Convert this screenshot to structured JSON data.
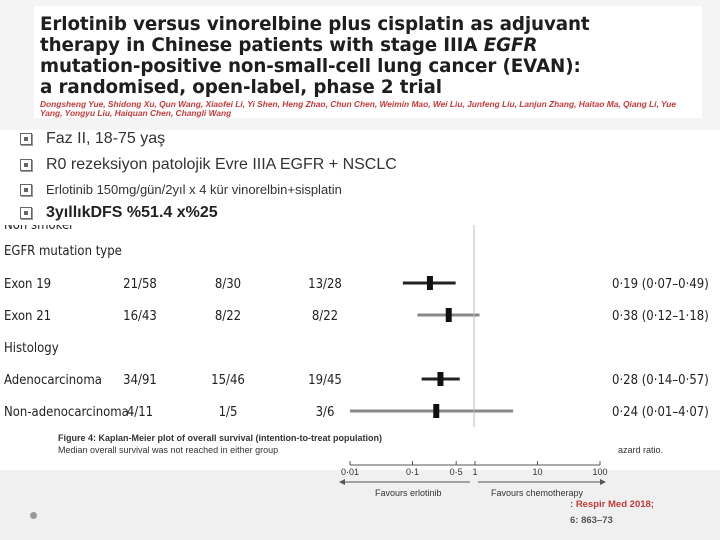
{
  "paper": {
    "title_line1": "Erlotinib versus vinorelbine plus cisplatin as adjuvant",
    "title_line2_pre": "therapy in Chinese patients with stage IIIA ",
    "title_line2_em": "EGFR",
    "title_line3": "mutation-positive non-small-cell lung cancer (EVAN):",
    "title_line4": "a randomised, open-label, phase 2 trial",
    "authors": "Dongsheng Yue, Shidong Xu, Qun Wang, Xiaofei Li, Yi Shen, Heng Zhao, Chun Chen, Weimin Mao, Wei Liu, Junfeng Liu, Lanjun Zhang, Haitao Ma, Qiang Li, Yue Yang, Yongyu Liu, Haiquan Chen, Changli Wang"
  },
  "bullets": [
    "Faz II, 18-75 yaş",
    "R0 rezeksiyon patolojik Evre IIIA EGFR + NSCLC",
    "Erlotinib 150mg/gün/2yıl x 4 kür vinorelbin+sisplatin",
    "3yıllıkDFS %51.4 x%25"
  ],
  "forest": {
    "rows": [
      {
        "label": "EGFR mutation type",
        "header": true
      },
      {
        "label": "Exon 19",
        "total": "21/58",
        "erl": "8/30",
        "vin": "13/28",
        "hr": "0·19 (0·07–0·49)"
      },
      {
        "label": "Exon 21",
        "total": "16/43",
        "erl": "8/22",
        "vin": "8/22",
        "hr": "0·38 (0·12–1·18)"
      },
      {
        "label": "Histology",
        "header": true
      },
      {
        "label": "Adenocarcinoma",
        "total": "34/91",
        "erl": "15/46",
        "vin": "19/45",
        "hr": "0·28 (0·14–0·57)"
      },
      {
        "label": "Non-adenocarcinoma",
        "total": "4/11",
        "erl": "1/5",
        "vin": "3/6",
        "hr": "0·24 (0·01–4·07)"
      }
    ],
    "caption_line1": "Figure 4: Kaplan-Meier plot of overall survival (intention-to-treat population)",
    "caption_line2": "Median overall survival was not reached in either group",
    "caption_tail": "azard ratio.",
    "axis_ticks": [
      "0·01",
      "0·1",
      "0·5",
      "1",
      "10",
      "100"
    ],
    "favours_left": "Favours erlotinib",
    "favours_right": "Favours chemotherapy"
  },
  "citation": {
    "journal": "Respir Med 2018;",
    "pages": "6: 863–73"
  },
  "chart_data": {
    "type": "forest",
    "xscale": "log",
    "xlim": [
      0.01,
      100
    ],
    "x_ticks": [
      0.01,
      0.1,
      0.5,
      1,
      10,
      100
    ],
    "reference_line": 1,
    "series": [
      {
        "name": "Exon 19",
        "hr": 0.19,
        "ci": [
          0.07,
          0.49
        ]
      },
      {
        "name": "Exon 21",
        "hr": 0.38,
        "ci": [
          0.12,
          1.18
        ]
      },
      {
        "name": "Adenocarcinoma",
        "hr": 0.28,
        "ci": [
          0.14,
          0.57
        ]
      },
      {
        "name": "Non-adenocarcinoma",
        "hr": 0.24,
        "ci": [
          0.01,
          4.07
        ]
      }
    ]
  }
}
